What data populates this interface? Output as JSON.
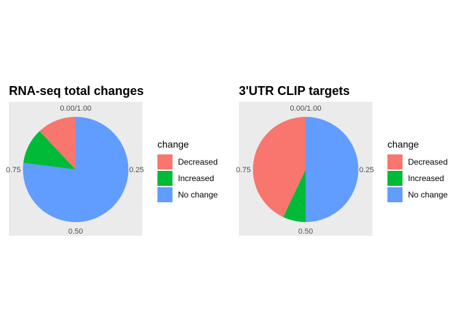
{
  "chart_data": [
    {
      "type": "pie",
      "title": "RNA-seq total changes",
      "polar_ticks": [
        "0.00/1.00",
        "0.25",
        "0.50",
        "0.75"
      ],
      "legend_title": "change",
      "legend_position": "right",
      "categories": [
        "Decreased",
        "Increased",
        "No change"
      ],
      "values": [
        0.12,
        0.11,
        0.77
      ],
      "colors": [
        "#F8766D",
        "#00BA38",
        "#619CFF"
      ]
    },
    {
      "type": "pie",
      "title": "3'UTR CLIP targets",
      "polar_ticks": [
        "0.00/1.00",
        "0.25",
        "0.50",
        "0.75"
      ],
      "legend_title": "change",
      "legend_position": "right",
      "categories": [
        "Decreased",
        "Increased",
        "No change"
      ],
      "values": [
        0.43,
        0.07,
        0.5
      ],
      "colors": [
        "#F8766D",
        "#00BA38",
        "#619CFF"
      ]
    }
  ],
  "panel_background": "#EBEBEB"
}
